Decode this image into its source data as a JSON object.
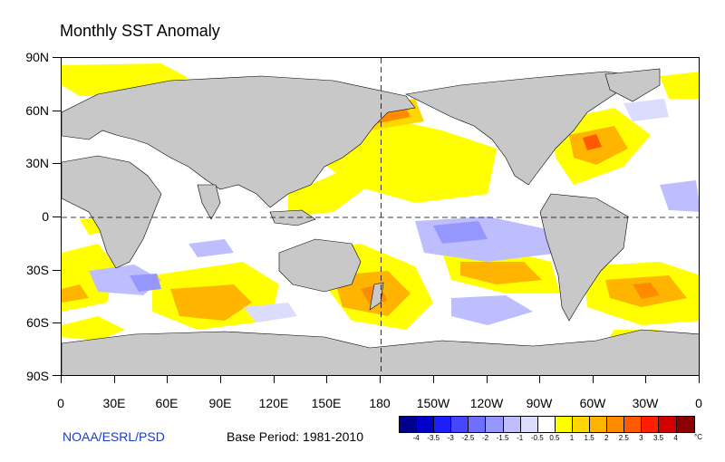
{
  "title": "Monthly SST Anomaly",
  "lat_labels": [
    "90N",
    "60N",
    "30N",
    "0",
    "30S",
    "60S",
    "90S"
  ],
  "lon_labels": [
    "0",
    "30E",
    "60E",
    "90E",
    "120E",
    "150E",
    "180",
    "150W",
    "120W",
    "90W",
    "60W",
    "30W",
    "0"
  ],
  "credit": "NOAA/ESRL/PSD",
  "base_period": "Base Period: 1981-2010",
  "colorbar": {
    "labels": [
      "-4",
      "-3.5",
      "-3",
      "-2.5",
      "-2",
      "-1.5",
      "-1",
      "-0.5",
      "0.5",
      "1",
      "1.5",
      "2",
      "2.5",
      "3",
      "3.5",
      "4"
    ],
    "unit": "°C",
    "colors": [
      "#00008c",
      "#0000c8",
      "#1e1efa",
      "#4646ff",
      "#6e6eff",
      "#9696ff",
      "#bebeff",
      "#dcdcff",
      "#ffffff",
      "#ffff00",
      "#ffd700",
      "#ffb400",
      "#ff8c00",
      "#ff5a00",
      "#ff1e00",
      "#d20000",
      "#8c0000"
    ]
  },
  "colors": {
    "land": "#c8c8c8",
    "ocean": "#ffffff"
  }
}
